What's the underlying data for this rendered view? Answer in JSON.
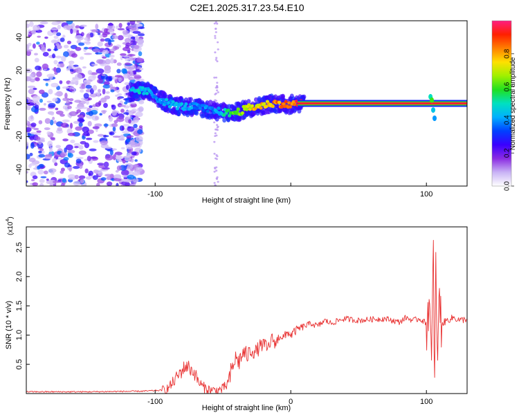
{
  "title": "C2E1.2025.317.23.54.E10",
  "chart_data": [
    {
      "type": "heatmap",
      "name": "spectrogram",
      "xlabel": "Height of straight line (km)",
      "ylabel": "Frequency (Hz)",
      "xlim": [
        -195,
        130
      ],
      "ylim": [
        -50,
        50
      ],
      "x_ticks": [
        -100,
        0,
        100
      ],
      "x_tick_labels": [
        "-100",
        "",
        "100"
      ],
      "y_ticks": [
        -40,
        -20,
        0,
        20,
        40
      ],
      "y_tick_labels": [
        "-40",
        "-20",
        "0",
        "20",
        "40"
      ],
      "noise_region_x": [
        -195,
        -110
      ],
      "ridge": [
        {
          "x": -118,
          "freq": 7,
          "amp": 0.45
        },
        {
          "x": -112,
          "freq": 8,
          "amp": 0.5
        },
        {
          "x": -105,
          "freq": 7,
          "amp": 0.45
        },
        {
          "x": -98,
          "freq": 3,
          "amp": 0.4
        },
        {
          "x": -90,
          "freq": 0,
          "amp": 0.45
        },
        {
          "x": -80,
          "freq": -2,
          "amp": 0.45
        },
        {
          "x": -70,
          "freq": -2,
          "amp": 0.4
        },
        {
          "x": -60,
          "freq": -4,
          "amp": 0.4
        },
        {
          "x": -52,
          "freq": -5,
          "amp": 0.45
        },
        {
          "x": -45,
          "freq": -6,
          "amp": 0.6
        },
        {
          "x": -38,
          "freq": -5,
          "amp": 0.7
        },
        {
          "x": -32,
          "freq": -3,
          "amp": 0.75
        },
        {
          "x": -26,
          "freq": -2,
          "amp": 0.8
        },
        {
          "x": -20,
          "freq": -1,
          "amp": 0.8
        },
        {
          "x": -14,
          "freq": 0,
          "amp": 0.85
        },
        {
          "x": -8,
          "freq": 0,
          "amp": 0.85
        },
        {
          "x": -2,
          "freq": -1,
          "amp": 0.9
        },
        {
          "x": 4,
          "freq": 0,
          "amp": 0.95
        },
        {
          "x": 10,
          "freq": 0,
          "amp": 1.0
        },
        {
          "x": 100,
          "freq": 0,
          "amp": 1.0
        },
        {
          "x": 103,
          "freq": 4,
          "amp": 0.5
        },
        {
          "x": 105,
          "freq": -5,
          "amp": 0.45
        },
        {
          "x": 106,
          "freq": -9,
          "amp": 0.4
        },
        {
          "x": 112,
          "freq": 0,
          "amp": 1.0
        },
        {
          "x": 130,
          "freq": 0,
          "amp": 1.0
        }
      ]
    },
    {
      "type": "line",
      "name": "snr",
      "xlabel": "Height of straight line (km)",
      "ylabel": "SNR (10 * v/v)",
      "y_multiplier_label": "(x10",
      "y_multiplier_exponent": "4",
      "xlim": [
        -195,
        130
      ],
      "ylim": [
        0,
        2.85
      ],
      "x_ticks": [
        -100,
        0,
        100
      ],
      "x_tick_labels": [
        "-100",
        "0",
        "100"
      ],
      "y_ticks": [
        0.5,
        1.0,
        1.5,
        2.0,
        2.5
      ],
      "y_tick_labels": [
        "0.5",
        "1.0",
        "1.5",
        "2.0",
        "2.5"
      ],
      "series": [
        {
          "name": "SNR",
          "color": "#e83030",
          "x": [
            -195,
            -150,
            -110,
            -92,
            -88,
            -84,
            -80,
            -77,
            -74,
            -71,
            -68,
            -65,
            -62,
            -59,
            -56,
            -53,
            -50,
            -47,
            -44,
            -41,
            -38,
            -35,
            -32,
            -29,
            -26,
            -23,
            -20,
            -17,
            -14,
            -11,
            -8,
            -5,
            -2,
            0,
            5,
            10,
            15,
            20,
            25,
            30,
            35,
            40,
            50,
            60,
            70,
            80,
            85,
            90,
            95,
            100,
            102,
            104,
            105,
            106,
            107,
            108,
            109,
            110,
            112,
            115,
            120,
            125,
            130
          ],
          "values": [
            0.03,
            0.03,
            0.04,
            0.06,
            0.15,
            0.28,
            0.4,
            0.48,
            0.42,
            0.35,
            0.2,
            0.12,
            0.08,
            0.06,
            0.05,
            0.06,
            0.08,
            0.15,
            0.35,
            0.6,
            0.55,
            0.7,
            0.65,
            0.75,
            0.7,
            0.8,
            0.85,
            0.75,
            0.95,
            0.85,
            1.0,
            0.95,
            1.05,
            1.0,
            1.1,
            1.15,
            1.2,
            1.15,
            1.25,
            1.2,
            1.25,
            1.28,
            1.25,
            1.27,
            1.28,
            1.22,
            1.3,
            1.25,
            1.28,
            1.2,
            1.6,
            0.3,
            2.7,
            0.1,
            2.2,
            0.2,
            1.8,
            1.3,
            1.2,
            1.25,
            1.3,
            1.25,
            1.28
          ]
        }
      ]
    },
    {
      "type": "colorbar",
      "name": "colorbar",
      "label": "Normalized spectral amplitude",
      "range": [
        0,
        1
      ],
      "ticks": [
        0.0,
        0.2,
        0.4,
        0.6,
        0.8
      ],
      "tick_labels": [
        "0.0",
        "0.2",
        "0.4",
        "0.6",
        "0.8"
      ],
      "stops": [
        "#ffffff",
        "#c9b3f5",
        "#8a2be2",
        "#3a00ff",
        "#0040ff",
        "#00b0ff",
        "#00e0c0",
        "#20e020",
        "#a0f000",
        "#ffe000",
        "#ff8000",
        "#ff2000",
        "#ff1e80"
      ]
    }
  ]
}
